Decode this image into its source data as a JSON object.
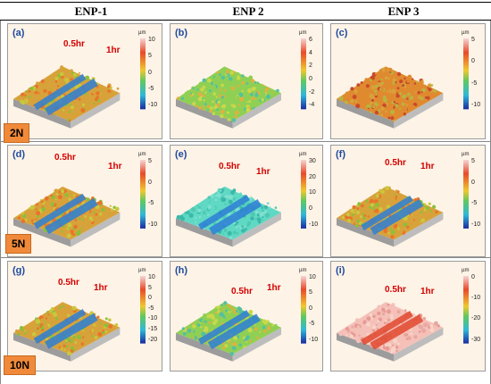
{
  "columns": [
    "ENP-1",
    "ENP 2",
    "ENP 3"
  ],
  "loads": [
    "2N",
    "5N",
    "10N"
  ],
  "unit": "µm",
  "panels": [
    {
      "label": "(a)",
      "ann_a": "0.5hr",
      "ann_b": "1hr",
      "ticks": [
        "10",
        "5",
        "0",
        "-5",
        "-10"
      ]
    },
    {
      "label": "(b)",
      "ann_a": "",
      "ann_b": "",
      "ticks": [
        "6",
        "4",
        "2",
        "0",
        "-2",
        "-4"
      ]
    },
    {
      "label": "(c)",
      "ann_a": "",
      "ann_b": "",
      "ticks": [
        "5",
        "0",
        "-5",
        "-10"
      ]
    },
    {
      "label": "(d)",
      "ann_a": "0.5hr",
      "ann_b": "1hr",
      "ticks": [
        "5",
        "0",
        "-5",
        "-10"
      ]
    },
    {
      "label": "(e)",
      "ann_a": "0.5hr",
      "ann_b": "1hr",
      "ticks": [
        "30",
        "20",
        "10",
        "0",
        "-10"
      ]
    },
    {
      "label": "(f)",
      "ann_a": "0.5hr",
      "ann_b": "1hr",
      "ticks": [
        "5",
        "0",
        "-5",
        "-10"
      ]
    },
    {
      "label": "(g)",
      "ann_a": "0.5hr",
      "ann_b": "1hr",
      "ticks": [
        "10",
        "5",
        "0",
        "-5",
        "-10",
        "-15",
        "-20"
      ]
    },
    {
      "label": "(h)",
      "ann_a": "0.5hr",
      "ann_b": "1hr",
      "ticks": [
        "10",
        "5",
        "0",
        "-5",
        "-10"
      ]
    },
    {
      "label": "(i)",
      "ann_a": "0.5hr",
      "ann_b": "1hr",
      "ticks": [
        "0",
        "-10",
        "-20",
        "-30"
      ]
    }
  ],
  "colors": {
    "surface_orange": "#e69a2e",
    "surface_green": "#7cc84a",
    "surface_cyan": "#5fd6c2",
    "surface_pink": "#f2b7b0",
    "track_blue": "#2e7fd6",
    "track_red": "#e0482e"
  }
}
